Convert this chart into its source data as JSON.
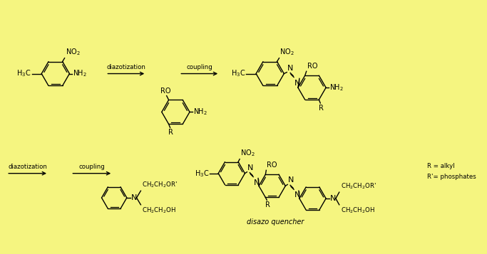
{
  "background_color": "#f5f580",
  "text_color": "#000000",
  "figsize": [
    6.83,
    3.57
  ],
  "dpi": 100,
  "labels": {
    "diazotization1": "diazotization",
    "coupling1": "coupling",
    "diazotization2": "diazotization",
    "coupling2": "coupling",
    "disazo_quencher": "disazo quencher",
    "R_alkyl": "R = alkyl",
    "R_prime": "R'= phosphates"
  }
}
